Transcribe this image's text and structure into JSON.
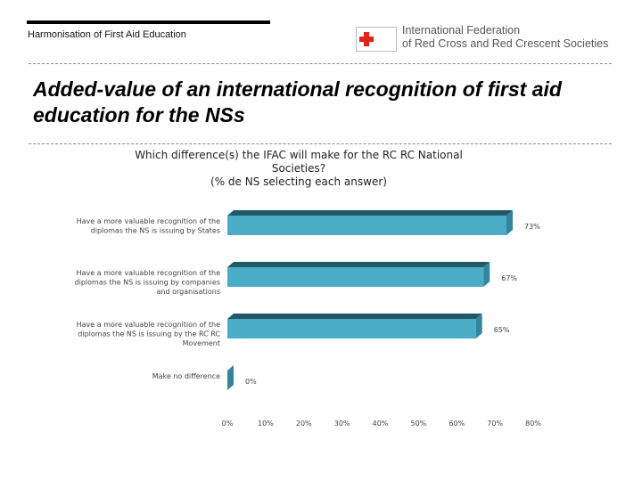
{
  "header": {
    "text": "Harmonisation of First Aid Education",
    "logo_line1": "International Federation",
    "logo_line2": "of Red Cross and Red Crescent Societies",
    "logo_color": "#e2231a"
  },
  "title": "Added-value of an international recognition of first aid education for the NSs",
  "chart_data": {
    "type": "bar",
    "orientation": "horizontal",
    "title": "Which difference(s) the IFAC will make for the RC RC National Societies?\n(% de NS selecting each answer)",
    "categories": [
      "Have a more valuable recognition of the diplomas the NS is issuing by States",
      "Have a more valuable recognition of the diplomas the NS is issuing by companies and organisations",
      "Have a more valuable recognition of the diplomas the NS is issuing by the RC RC Movement",
      "Make no difference"
    ],
    "values": [
      73,
      67,
      65,
      0
    ],
    "value_labels": [
      "73%",
      "67%",
      "65%",
      "0%"
    ],
    "x_ticks": [
      "0%",
      "10%",
      "20%",
      "30%",
      "40%",
      "50%",
      "60%",
      "70%",
      "80%"
    ],
    "xlim": [
      0,
      80
    ],
    "bar_color": "#4bacc6",
    "bar_side_color": "#31859c",
    "bar_top_color": "#215968",
    "style": "3d"
  }
}
